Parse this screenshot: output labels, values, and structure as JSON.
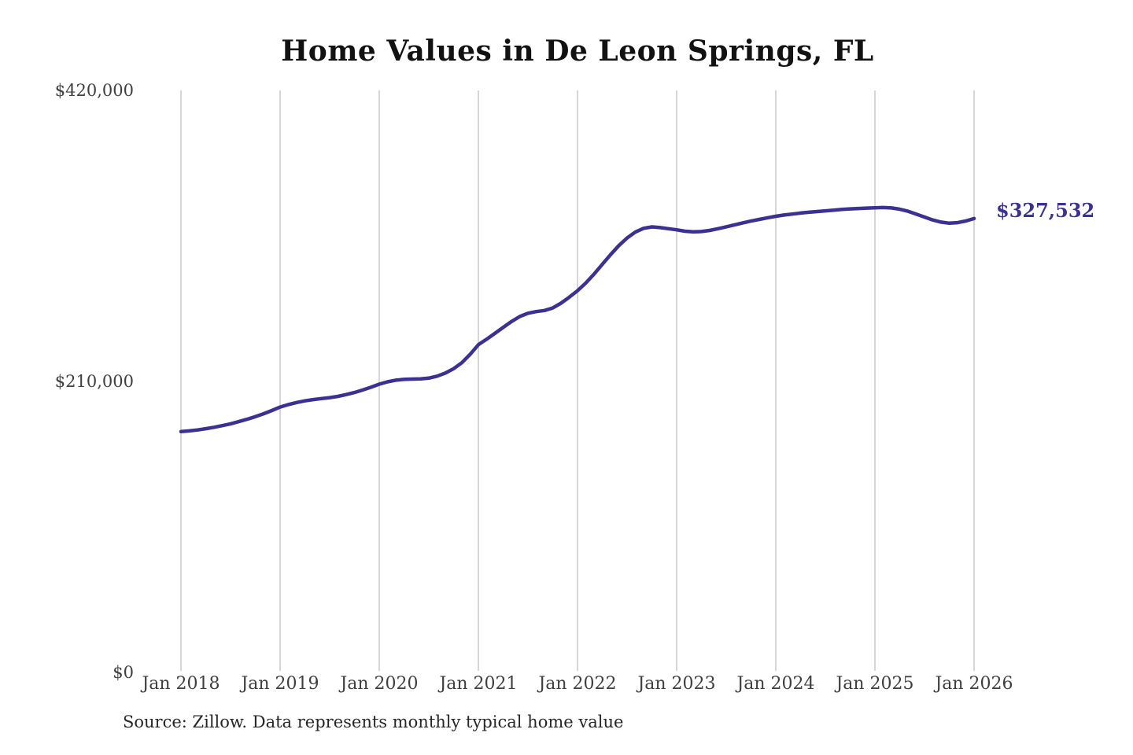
{
  "chart": {
    "title": "Home Values in De Leon Springs, FL",
    "end_label": "$327,532",
    "source_note": "Source: Zillow. Data represents monthly typical home value"
  },
  "chart_data": {
    "type": "line",
    "title": "Home Values in De Leon Springs, FL",
    "series_name": "Monthly typical home value",
    "x_interval": "monthly",
    "x_start": "Jan 2018",
    "x_end": "Jan 2026",
    "x_tick_labels": [
      "Jan 2018",
      "Jan 2019",
      "Jan 2020",
      "Jan 2021",
      "Jan 2022",
      "Jan 2023",
      "Jan 2024",
      "Jan 2025",
      "Jan 2026"
    ],
    "y_ticks": [
      {
        "label": "$420,000",
        "value": 420000
      },
      {
        "label": "$210,000",
        "value": 210000
      },
      {
        "label": "$0",
        "value": 0
      }
    ],
    "ylim": [
      0,
      420000
    ],
    "grid": "vertical-only",
    "legend_position": "none",
    "line_color": "#3a3191",
    "grid_color": "#cccccc",
    "end_value": 327532,
    "values": [
      173800,
      174300,
      175000,
      175900,
      176900,
      178100,
      179400,
      181000,
      182700,
      184600,
      186700,
      189000,
      191500,
      193300,
      194800,
      196000,
      196900,
      197600,
      198300,
      199200,
      200500,
      202000,
      203800,
      205800,
      208000,
      209700,
      210900,
      211500,
      211700,
      211800,
      212400,
      213800,
      216000,
      219200,
      223500,
      229500,
      236500,
      240500,
      244700,
      249000,
      253200,
      256800,
      259200,
      260400,
      261200,
      263000,
      266500,
      270800,
      275500,
      281000,
      287500,
      294500,
      301500,
      308000,
      313500,
      317800,
      320500,
      321500,
      321000,
      320200,
      319400,
      318400,
      318000,
      318200,
      319000,
      320200,
      321600,
      323000,
      324400,
      325700,
      326900,
      328100,
      329200,
      330100,
      330800,
      331500,
      332100,
      332600,
      333100,
      333600,
      334100,
      334500,
      334800,
      335100,
      335300,
      335500,
      335200,
      334300,
      332800,
      330800,
      328600,
      326500,
      325000,
      324200,
      324600,
      325800,
      327532
    ]
  }
}
